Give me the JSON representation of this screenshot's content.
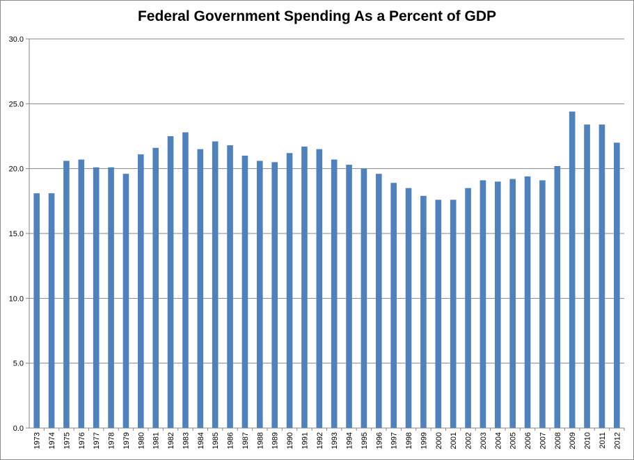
{
  "chart_data": {
    "type": "bar",
    "title": "Federal Government Spending As a Percent of GDP",
    "xlabel": "",
    "ylabel": "",
    "ylim": [
      0,
      30
    ],
    "yticks": [
      "0.0",
      "5.0",
      "10.0",
      "15.0",
      "20.0",
      "25.0",
      "30.0"
    ],
    "grid": true,
    "legend": "none",
    "bar_color": "#4f81bd",
    "grid_color": "#868686",
    "categories": [
      "1973",
      "1974",
      "1975",
      "1976",
      "1977",
      "1978",
      "1979",
      "1980",
      "1981",
      "1982",
      "1983",
      "1984",
      "1985",
      "1986",
      "1987",
      "1988",
      "1989",
      "1990",
      "1991",
      "1992",
      "1993",
      "1994",
      "1995",
      "1996",
      "1997",
      "1998",
      "1999",
      "2000",
      "2001",
      "2002",
      "2003",
      "2004",
      "2005",
      "2006",
      "2007",
      "2008",
      "2009",
      "2010",
      "2011",
      "2012"
    ],
    "values": [
      18.1,
      18.1,
      20.6,
      20.7,
      20.1,
      20.1,
      19.6,
      21.1,
      21.6,
      22.5,
      22.8,
      21.5,
      22.1,
      21.8,
      21.0,
      20.6,
      20.5,
      21.2,
      21.7,
      21.5,
      20.7,
      20.3,
      20.0,
      19.6,
      18.9,
      18.5,
      17.9,
      17.6,
      17.6,
      18.5,
      19.1,
      19.0,
      19.2,
      19.4,
      19.1,
      20.2,
      24.4,
      23.4,
      23.4,
      22.0
    ]
  }
}
